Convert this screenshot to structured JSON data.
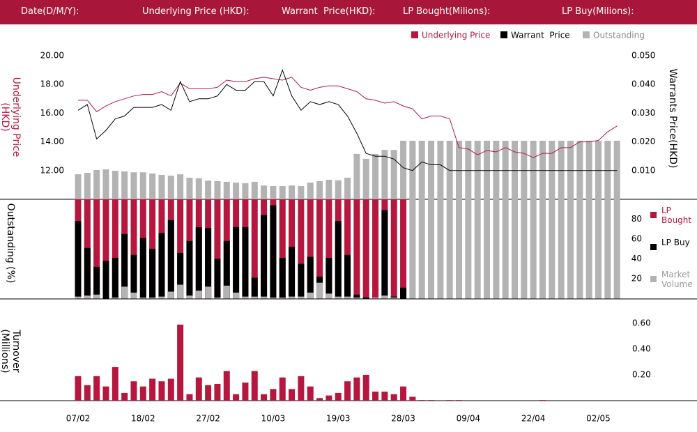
{
  "header": {
    "labels": [
      "Date(D/M/Y):",
      "Underlying Price (HKD):",
      "Warrant  Price(HKD):",
      "LP Bought(Milions):",
      "LP Buy(Milions):"
    ]
  },
  "chart_data": [
    {
      "type": "line",
      "y_label": "Underlying Price (HKD)",
      "y2_label": "Warrants  Price(HKD)",
      "ylim": [
        10,
        20
      ],
      "yticks": [
        {
          "value": 12,
          "label": "12.00"
        },
        {
          "value": 14,
          "label": "14.00"
        },
        {
          "value": 16,
          "label": "16.00"
        },
        {
          "value": 18,
          "label": "18.00"
        },
        {
          "value": 20,
          "label": "20.00"
        }
      ],
      "y2lim": [
        0,
        0.05
      ],
      "y2ticks": [
        {
          "value": 0.01,
          "label": "0.010"
        },
        {
          "value": 0.02,
          "label": "0.020"
        },
        {
          "value": 0.03,
          "label": "0.030"
        },
        {
          "value": 0.04,
          "label": "0.040"
        },
        {
          "value": 0.05,
          "label": "0.050"
        }
      ],
      "series": [
        {
          "name": "Underlying Price",
          "color": "#b5173f",
          "values": [
            16.9,
            16.9,
            16.1,
            16.5,
            16.8,
            17.0,
            17.2,
            17.3,
            17.3,
            17.5,
            17.2,
            18.1,
            17.7,
            17.7,
            17.7,
            17.8,
            18.3,
            18.2,
            18.2,
            18.4,
            18.5,
            18.4,
            18.3,
            18.5,
            17.8,
            17.6,
            17.8,
            17.9,
            17.9,
            17.7,
            17.5,
            17.0,
            16.9,
            16.7,
            16.8,
            16.5,
            16.3,
            15.6,
            15.8,
            15.8,
            15.6,
            13.6,
            13.5,
            13.1,
            13.4,
            13.3,
            13.6,
            13.3,
            13.2,
            12.9,
            13.2,
            13.2,
            13.6,
            13.6,
            14.0,
            14.0,
            14.1,
            14.7,
            15.1
          ]
        },
        {
          "name": "Warrant  Price",
          "color": "#000000",
          "axis": "y2",
          "values": [
            0.031,
            0.033,
            0.021,
            0.024,
            0.028,
            0.029,
            0.032,
            0.032,
            0.032,
            0.033,
            0.031,
            0.041,
            0.034,
            0.035,
            0.035,
            0.036,
            0.04,
            0.038,
            0.038,
            0.041,
            0.041,
            0.036,
            0.045,
            0.036,
            0.031,
            0.034,
            0.033,
            0.034,
            0.033,
            0.029,
            0.023,
            0.016,
            0.015,
            0.015,
            0.014,
            0.011,
            0.01,
            0.013,
            0.012,
            0.012,
            0.01,
            0.01,
            0.01,
            0.01,
            0.01,
            0.01,
            0.01,
            0.01,
            0.01,
            0.01,
            0.01,
            0.01,
            0.01,
            0.01,
            0.01,
            0.01,
            0.01,
            0.01,
            0.01
          ]
        },
        {
          "name": "Outstanding",
          "color": "#b3b3b3",
          "type": "bar",
          "axis": "y2",
          "values": [
            0.0087,
            0.0092,
            0.0102,
            0.0104,
            0.0099,
            0.0097,
            0.0094,
            0.0094,
            0.009,
            0.0085,
            0.0082,
            0.0087,
            0.0075,
            0.0073,
            0.0065,
            0.0063,
            0.0061,
            0.0058,
            0.0056,
            0.0061,
            0.0048,
            0.0046,
            0.0046,
            0.0048,
            0.0046,
            0.0058,
            0.0063,
            0.0068,
            0.0066,
            0.0075,
            0.0158,
            0.0141,
            0.0158,
            0.0172,
            0.0172,
            0.0204,
            0.0204,
            0.0204,
            0.0204,
            0.0204,
            0.0204,
            0.0204,
            0.0204,
            0.0204,
            0.0204,
            0.0204,
            0.0204,
            0.0204,
            0.0204,
            0.0204,
            0.0204,
            0.0204,
            0.0204,
            0.0204,
            0.0204,
            0.0204,
            0.0204,
            0.0204,
            0.0204
          ]
        }
      ]
    },
    {
      "type": "bar",
      "y_label": "Outstanding (%)",
      "ylim": [
        0,
        100
      ],
      "yticks": [
        20,
        40,
        60,
        80
      ],
      "series": [
        {
          "name": "LP Bought",
          "color": "#b5173f",
          "values": [
            100,
            100,
            100,
            100,
            100,
            100,
            100,
            100,
            100,
            100,
            100,
            100,
            100,
            100,
            100,
            100,
            100,
            100,
            100,
            100,
            100,
            100,
            100,
            100,
            100,
            100,
            100,
            100,
            100,
            100,
            100,
            100,
            100,
            100,
            100,
            100,
            0,
            0,
            0,
            0,
            0,
            0,
            0,
            0,
            0,
            0,
            0,
            0,
            0,
            0,
            0,
            0,
            0,
            0,
            0,
            0,
            0,
            0,
            0
          ]
        },
        {
          "name": "LP Buy",
          "color": "#000000",
          "values": [
            78,
            51,
            32,
            38,
            41,
            65,
            44,
            61,
            50,
            66,
            79,
            46,
            58,
            72,
            71,
            40,
            58,
            72,
            72,
            21,
            84,
            94,
            41,
            52,
            35,
            42,
            22,
            41,
            78,
            44,
            4,
            1,
            0,
            89,
            2,
            11,
            0,
            0,
            0,
            0,
            0,
            0,
            0,
            0,
            0,
            0,
            0,
            0,
            0,
            0,
            0,
            0,
            0,
            0,
            0,
            0,
            0,
            0,
            0
          ]
        },
        {
          "name": "Market Volume",
          "color": "#b3b3b3",
          "values": [
            2,
            3,
            4,
            0,
            1,
            12,
            6,
            1,
            1,
            2,
            7,
            14,
            3,
            8,
            12,
            1,
            13,
            6,
            2,
            2,
            2,
            1,
            1,
            2,
            2,
            6,
            16,
            5,
            2,
            2,
            1,
            0,
            1,
            3,
            1,
            0,
            100,
            100,
            100,
            100,
            100,
            100,
            100,
            100,
            100,
            100,
            100,
            100,
            100,
            100,
            100,
            100,
            100,
            100,
            100,
            100,
            100,
            100,
            100
          ]
        }
      ]
    },
    {
      "type": "bar",
      "y_label": "Turnover (Millions)",
      "color": "#b5173f",
      "categories": [
        "07/02",
        null,
        null,
        null,
        null,
        null,
        null,
        "18/02",
        null,
        null,
        null,
        null,
        null,
        null,
        "27/02",
        null,
        null,
        null,
        null,
        null,
        null,
        "10/03",
        null,
        null,
        null,
        null,
        null,
        null,
        "19/03",
        null,
        null,
        null,
        null,
        null,
        null,
        "28/03",
        null,
        null,
        null,
        null,
        null,
        null,
        "09/04",
        null,
        null,
        null,
        null,
        null,
        null,
        "22/04",
        null,
        null,
        null,
        null,
        null,
        null,
        "02/05",
        null,
        null
      ],
      "values": [
        0.19,
        0.12,
        0.19,
        0.11,
        0.26,
        0.06,
        0.15,
        0.11,
        0.17,
        0.15,
        0.17,
        0.59,
        0.05,
        0.18,
        0.12,
        0.13,
        0.23,
        0.05,
        0.14,
        0.23,
        0.05,
        0.09,
        0.18,
        0.09,
        0.19,
        0.11,
        0.02,
        0.04,
        0.06,
        0.15,
        0.18,
        0.2,
        0.07,
        0.07,
        0.05,
        0.11,
        0.03,
        0.005,
        0.005,
        0,
        0.005,
        0.005,
        0,
        0,
        0,
        0,
        0,
        0,
        0,
        0,
        0.005,
        0,
        0,
        0,
        0,
        0,
        0,
        0,
        0
      ],
      "ylim": [
        0,
        0.7
      ],
      "yticks": [
        {
          "value": 0.2,
          "label": "0.20"
        },
        {
          "value": 0.4,
          "label": "0.40"
        },
        {
          "value": 0.6,
          "label": "0.60"
        }
      ]
    }
  ]
}
